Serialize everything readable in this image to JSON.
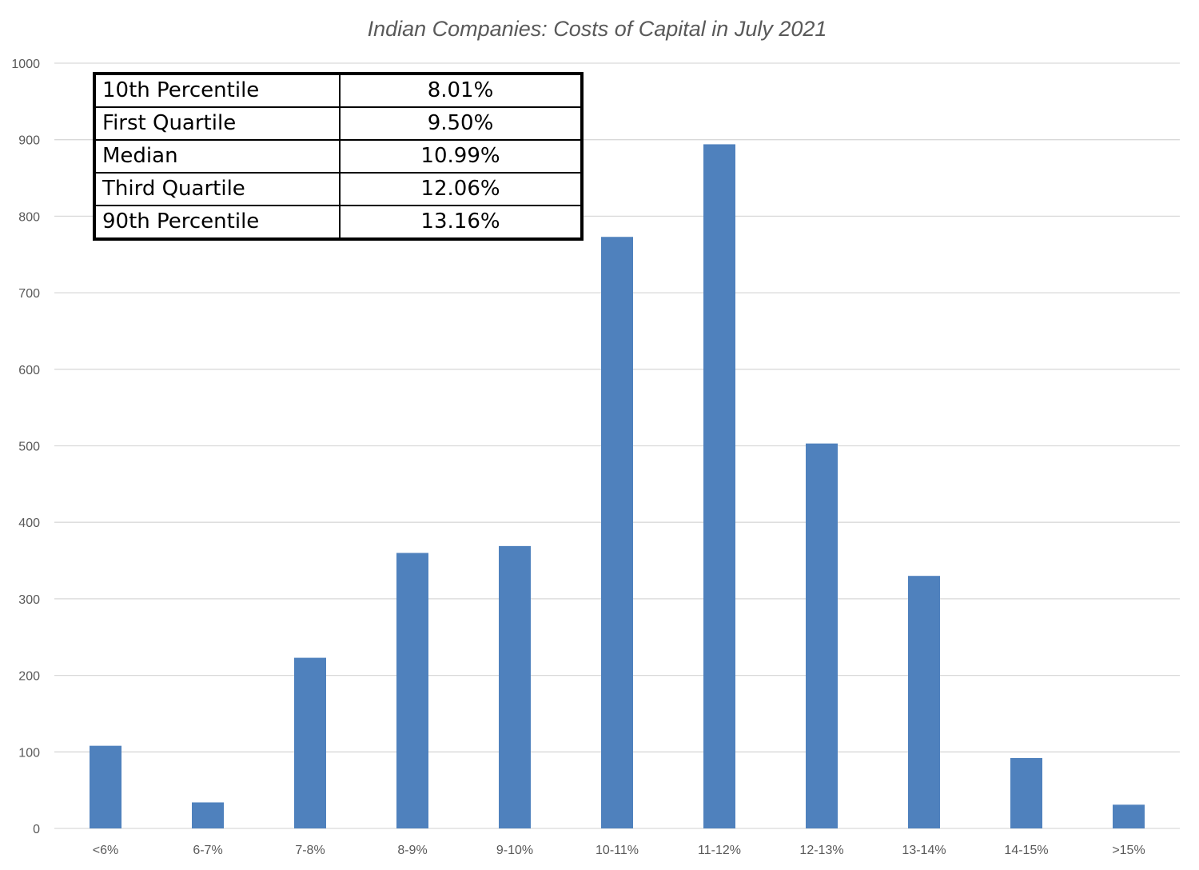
{
  "chart_data": {
    "type": "bar",
    "title": "Indian Companies: Costs of Capital in July 2021",
    "categories": [
      "<6%",
      "6-7%",
      "7-8%",
      "8-9%",
      "9-10%",
      "10-11%",
      "11-12%",
      "12-13%",
      "13-14%",
      "14-15%",
      ">15%"
    ],
    "values": [
      108,
      34,
      223,
      360,
      369,
      773,
      894,
      503,
      330,
      92,
      31
    ],
    "yticks": [
      "0",
      "100",
      "200",
      "300",
      "400",
      "500",
      "600",
      "700",
      "800",
      "900",
      "1000"
    ],
    "ylim": [
      0,
      1000
    ],
    "grid": true,
    "bar_color": "#4f81bd",
    "legend": "none"
  },
  "stats_table": {
    "rows": [
      {
        "label": "10th Percentile",
        "value": "8.01%"
      },
      {
        "label": "First Quartile",
        "value": "9.50%"
      },
      {
        "label": "Median",
        "value": "10.99%"
      },
      {
        "label": "Third Quartile",
        "value": "12.06%"
      },
      {
        "label": "90th Percentile",
        "value": "13.16%"
      }
    ]
  }
}
